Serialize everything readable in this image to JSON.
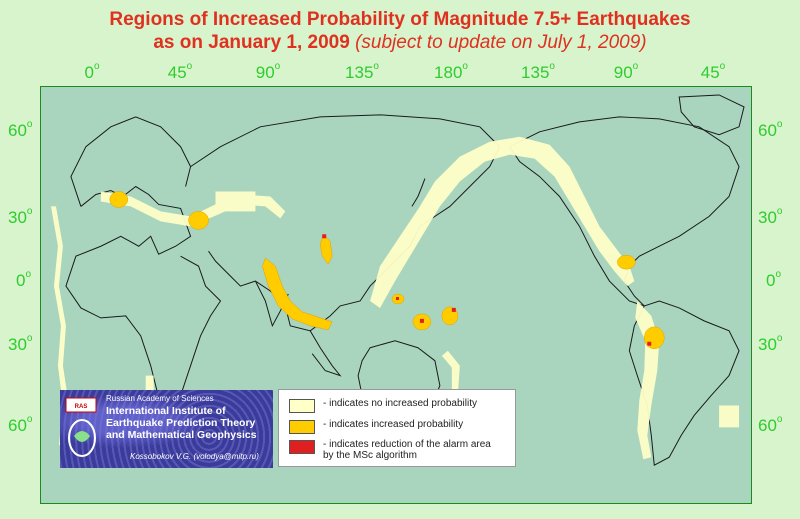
{
  "title": {
    "line1": "Regions of Increased Probability of Magnitude 7.5+ Earthquakes",
    "line2_main": "as on January 1, 2009",
    "line2_sub": "(subject to update on July 1, 2009)"
  },
  "longitude_ticks": [
    "0",
    "45",
    "90",
    "135",
    "180",
    "135",
    "90",
    "45"
  ],
  "latitude_ticks": [
    "60",
    "30",
    "0",
    "30",
    "60"
  ],
  "degree_symbol": "o",
  "legend": {
    "items": [
      {
        "label": "- indicates no increased probability",
        "color": "#ffffc8"
      },
      {
        "label": "- indicates increased probability",
        "color": "#ffcc00"
      },
      {
        "label": "- indicates reduction of the alarm area by the MSc algorithm",
        "color": "#e02020"
      }
    ]
  },
  "institute": {
    "academy": "Russian Academy of Sciences",
    "name": "International Institute of Earthquake Prediction Theory and Mathematical Geophysics",
    "author": "Kossobokov V.G. (volodya@mitp.ru)"
  },
  "colors": {
    "ocean": "#a9d5bf",
    "background": "#d8f4cc",
    "grid_text": "#2ecc2e",
    "no_increase": "#ffffc8",
    "increased": "#ffcc00",
    "reduction": "#e02020",
    "title": "#e03020"
  }
}
